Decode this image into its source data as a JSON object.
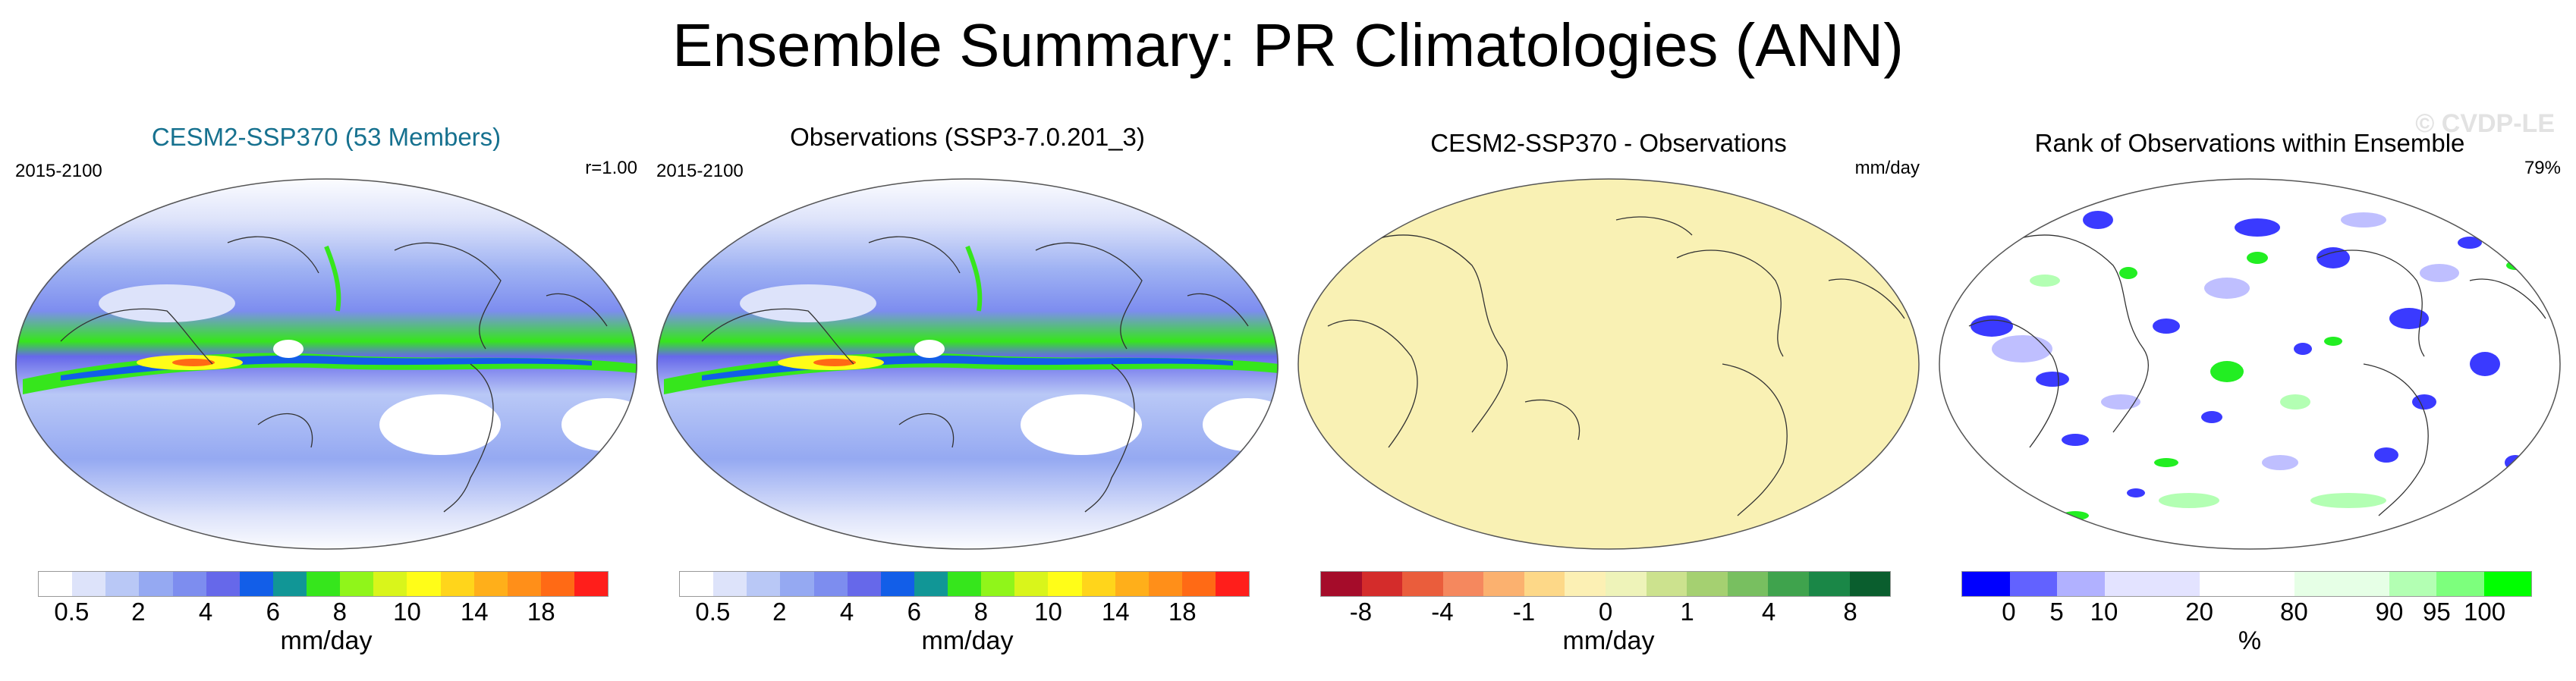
{
  "main_title": "Ensemble Summary: PR Climatologies (ANN)",
  "watermark": "© CVDP-LE",
  "panels": [
    {
      "title": "CESM2-SSP370 (53 Members)",
      "left_label": "2015-2100",
      "right_label": "r=1.00",
      "units": "mm/day",
      "colorbar": [
        "#ffffff",
        "#dde3fa",
        "#b9c8f6",
        "#95a9f2",
        "#7d8def",
        "#6668ea",
        "#125ee8",
        "#119696",
        "#36e61c",
        "#90f51a",
        "#d9f51b",
        "#fffd18",
        "#ffd51b",
        "#ffaf1a",
        "#ff8f19",
        "#ff6a15",
        "#ff1e1b"
      ],
      "ticks": [
        "0.5",
        "2",
        "4",
        "6",
        "8",
        "10",
        "14",
        "18"
      ]
    },
    {
      "title": "Observations (SSP3-7.0.201_3)",
      "left_label": "2015-2100",
      "units": "mm/day",
      "colorbar": [
        "#ffffff",
        "#dde3fa",
        "#b9c8f6",
        "#95a9f2",
        "#7d8def",
        "#6668ea",
        "#125ee8",
        "#119696",
        "#36e61c",
        "#90f51a",
        "#d9f51b",
        "#fffd18",
        "#ffd51b",
        "#ffaf1a",
        "#ff8f19",
        "#ff6a15",
        "#ff1e1b"
      ],
      "ticks": [
        "0.5",
        "2",
        "4",
        "6",
        "8",
        "10",
        "14",
        "18"
      ]
    },
    {
      "title": "CESM2-SSP370 - Observations",
      "right_label": "mm/day",
      "units": "mm/day",
      "colorbar": [
        "#a50c2a",
        "#d42c2b",
        "#ea5d3c",
        "#f5885e",
        "#fbb16f",
        "#fdd888",
        "#fcf0b4",
        "#eef3b9",
        "#cce28e",
        "#a5d071",
        "#78bf60",
        "#3fa34d",
        "#1a8747",
        "#0a5e2e"
      ],
      "ticks": [
        "-8",
        "-4",
        "-1",
        "0",
        "1",
        "4",
        "8"
      ]
    },
    {
      "title": "Rank of Observations within Ensemble",
      "right_label": "79%",
      "units": "%",
      "colorbar": [
        "#0000ff",
        "#6262ff",
        "#b1b1ff",
        "#e3e3ff",
        "#e3e3ff",
        "#ffffff",
        "#ffffff",
        "#e6ffe6",
        "#e6ffe6",
        "#b3ffb3",
        "#7dff7d",
        "#00ff00"
      ],
      "ticks": [
        "0",
        "5",
        "10",
        "20",
        "80",
        "90",
        "95",
        "100"
      ]
    }
  ]
}
